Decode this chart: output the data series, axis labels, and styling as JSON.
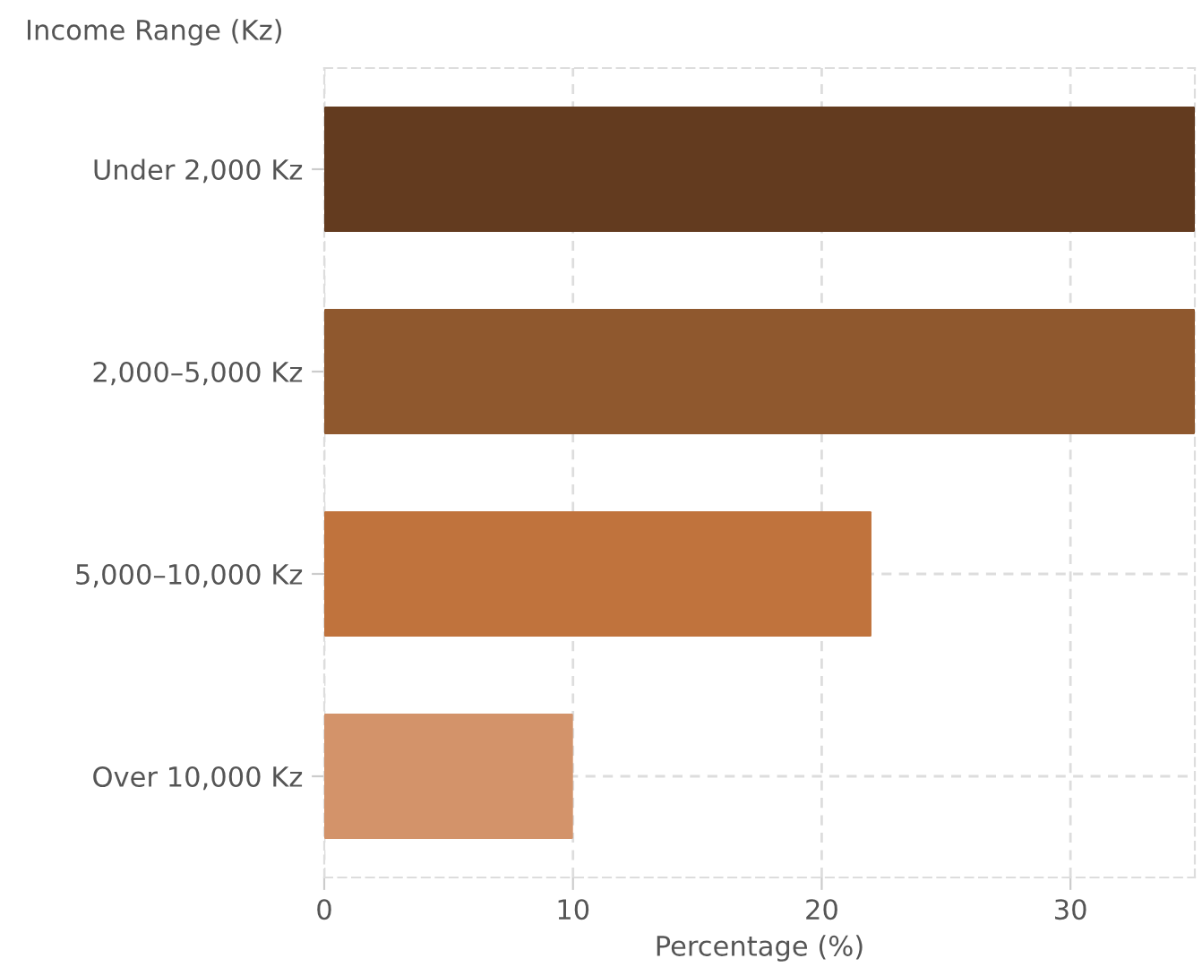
{
  "chart_data": {
    "type": "bar",
    "orientation": "horizontal",
    "ylabel": "Income Range (Kz)",
    "xlabel": "Percentage (%)",
    "categories": [
      "Under 2,000 Kz",
      "2,000–5,000 Kz",
      "5,000–10,000 Kz",
      "Over 10,000 Kz"
    ],
    "values": [
      35,
      35,
      22,
      10
    ],
    "colors": [
      "#633b1f",
      "#8f582e",
      "#c0733d",
      "#d3936a"
    ],
    "xlim": [
      0,
      35
    ],
    "xticks": [
      0,
      10,
      20,
      30
    ],
    "grid": true,
    "legend": false
  }
}
